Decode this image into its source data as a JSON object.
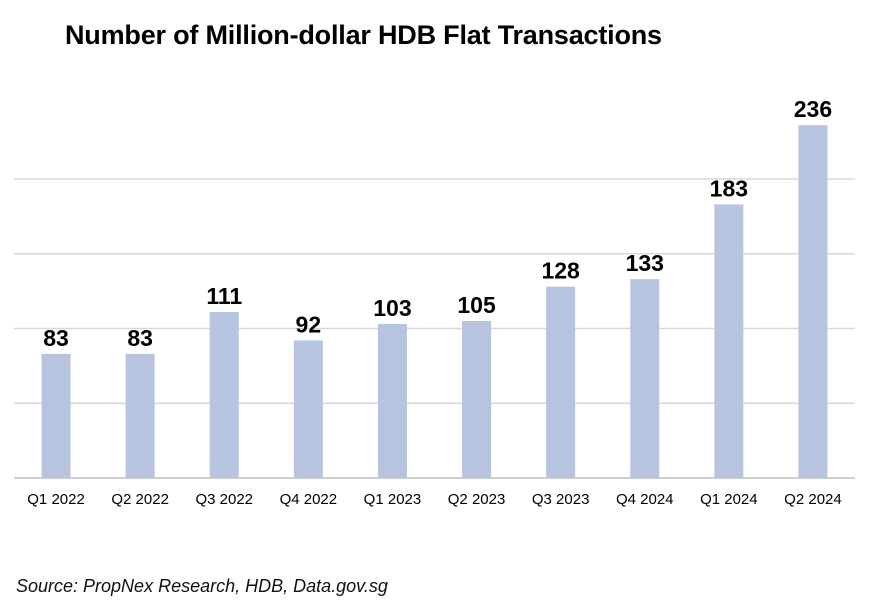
{
  "title": "Number of Million-dollar HDB Flat Transactions",
  "source": "Source: PropNex Research, HDB, Data.gov.sg",
  "colors": {
    "bar": "#b7c4e0",
    "grid": "#d9d9d9",
    "axis": "#bfbfbf"
  },
  "chart_data": {
    "type": "bar",
    "title": "Number of Million-dollar HDB Flat Transactions",
    "xlabel": "",
    "ylabel": "",
    "categories": [
      "Q1 2022",
      "Q2 2022",
      "Q3 2022",
      "Q4 2022",
      "Q1 2023",
      "Q2 2023",
      "Q3 2023",
      "Q4 2024",
      "Q1 2024",
      "Q2 2024"
    ],
    "values": [
      83,
      83,
      111,
      92,
      103,
      105,
      128,
      133,
      183,
      236
    ],
    "ylim": [
      0,
      250
    ],
    "grid": true,
    "legend": "none"
  }
}
